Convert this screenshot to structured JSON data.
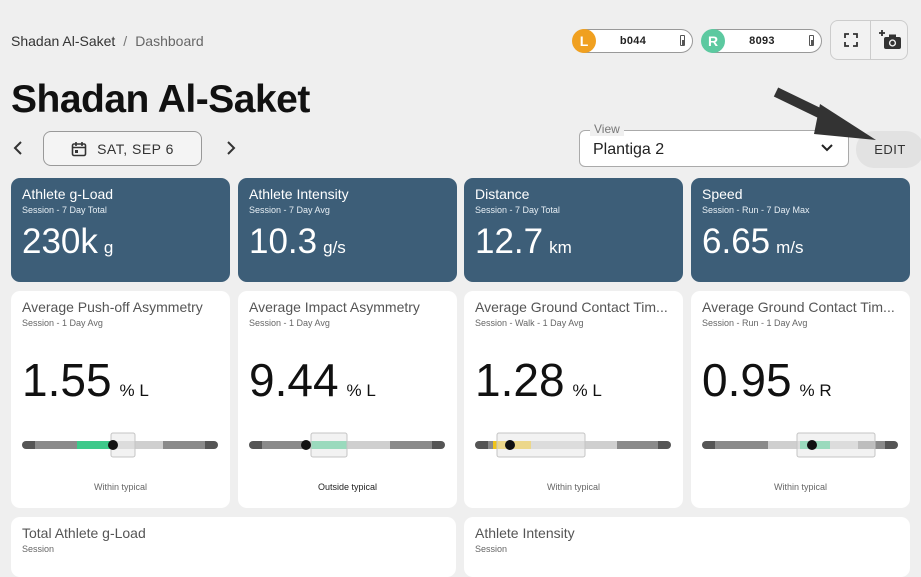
{
  "breadcrumb": {
    "athlete": "Shadan Al-Saket",
    "separator": "/",
    "page": "Dashboard"
  },
  "sensors": {
    "left": {
      "badge": "L",
      "value": "b044",
      "color": "#f0a020"
    },
    "right": {
      "badge": "R",
      "value": "8093",
      "color": "#5cc9a0"
    }
  },
  "icons": {
    "fullscreen": "fullscreen-icon",
    "screenshot": "add-photo-icon"
  },
  "title": "Shadan Al-Saket",
  "date": {
    "label": "SAT, SEP 6",
    "prev": "‹",
    "next": "›"
  },
  "view": {
    "label": "View",
    "value": "Plantiga 2"
  },
  "edit_label": "EDIT",
  "kpis": [
    {
      "title": "Athlete g-Load",
      "subtitle": "Session - 7 Day Total",
      "value": "230k",
      "unit": "g"
    },
    {
      "title": "Athlete Intensity",
      "subtitle": "Session - 7 Day Avg",
      "value": "10.3",
      "unit": "g/s"
    },
    {
      "title": "Distance",
      "subtitle": "Session - 7 Day Total",
      "value": "12.7",
      "unit": "km"
    },
    {
      "title": "Speed",
      "subtitle": "Session - Run - 7 Day Max",
      "value": "6.65",
      "unit": "m/s"
    }
  ],
  "asymmetry": [
    {
      "title": "Average Push-off Asymmetry",
      "subtitle": "Session - 1 Day Avg",
      "value": "1.55",
      "unit": "% L",
      "status": "Within typical",
      "marker": 0.465,
      "highlight": "#3dc98a"
    },
    {
      "title": "Average Impact Asymmetry",
      "subtitle": "Session - 1 Day Avg",
      "value": "9.44",
      "unit": "% L",
      "status": "Outside typical",
      "marker": 0.29,
      "highlight": "#3dc98a"
    },
    {
      "title": "Average Ground Contact Tim...",
      "subtitle": "Session - Walk - 1 Day Avg",
      "value": "1.28",
      "unit": "% L",
      "status": "Within typical",
      "marker": 0.17,
      "highlight": "#f1c419"
    },
    {
      "title": "Average Ground Contact Tim...",
      "subtitle": "Session - Run - 1 Day Avg",
      "value": "0.95",
      "unit": "% R",
      "status": "Within typical",
      "marker": 0.56,
      "highlight": "#3dc98a"
    }
  ],
  "bottom": [
    {
      "title": "Total Athlete g-Load",
      "subtitle": "Session"
    },
    {
      "title": "Athlete Intensity",
      "subtitle": "Session"
    }
  ]
}
